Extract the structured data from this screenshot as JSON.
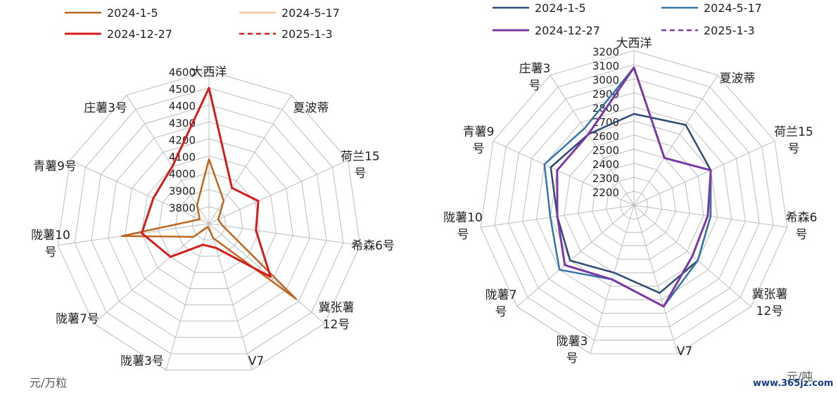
{
  "chart_data": [
    {
      "type": "radar",
      "unit": "元/万粒",
      "categories": [
        "大西洋",
        "夏波蒂",
        "荷兰15号",
        "希森6号",
        "冀张薯12号",
        "V7",
        "陇薯3号",
        "陇薯7号",
        "陇薯10号",
        "青薯9号",
        "庄薯3号"
      ],
      "category_label_lines": [
        [
          "大西洋"
        ],
        [
          "夏波蒂"
        ],
        [
          "荷兰15",
          "号"
        ],
        [
          "希森6号"
        ],
        [
          "冀张薯",
          "12号"
        ],
        [
          "V7"
        ],
        [
          "陇薯3号"
        ],
        [
          "陇薯7号"
        ],
        [
          "陇薯10",
          "号"
        ],
        [
          "青薯9号"
        ],
        [
          "庄薯3号"
        ]
      ],
      "axis_min": 3700,
      "axis_max": 4600,
      "axis_step": 100,
      "tick_labels": [
        "3800",
        "3900",
        "4000",
        "4100",
        "4200",
        "4300",
        "4400",
        "4500",
        "4600"
      ],
      "legend_position": "top",
      "series": [
        {
          "name": "2024-1-5",
          "color": "#c0661f",
          "dash": false,
          "width": 2.5,
          "values": [
            4080,
            3860,
            3760,
            3780,
            4380,
            3790,
            3720,
            3820,
            4220,
            3760,
            3830
          ]
        },
        {
          "name": "2024-5-17",
          "color": "#f0c8a0",
          "dash": false,
          "width": 2.5,
          "values": [
            4500,
            3950,
            4020,
            3980,
            4180,
            3850,
            3830,
            4000,
            4100,
            4060,
            4100
          ]
        },
        {
          "name": "2024-12-27",
          "color": "#d51d1d",
          "dash": false,
          "width": 3,
          "values": [
            4500,
            3950,
            4020,
            3980,
            4180,
            3850,
            3830,
            4000,
            4100,
            4060,
            4100
          ]
        },
        {
          "name": "2025-1-3",
          "color": "#d51d1d",
          "dash": true,
          "width": 2.5,
          "values": [
            4500,
            3950,
            4020,
            3980,
            4180,
            3850,
            3830,
            4000,
            4100,
            4060,
            4100
          ]
        }
      ]
    },
    {
      "type": "radar",
      "unit": "元/吨",
      "categories": [
        "大西洋",
        "夏波蒂",
        "荷兰15号",
        "希森6号",
        "冀张薯12号",
        "V7",
        "陇薯3号",
        "陇薯7号",
        "陇薯10号",
        "青薯9号",
        "庄薯3号"
      ],
      "category_label_lines": [
        [
          "大西洋"
        ],
        [
          "夏波蒂"
        ],
        [
          "荷兰15",
          "号"
        ],
        [
          "希森6",
          "号"
        ],
        [
          "冀张薯",
          "12号"
        ],
        [
          "V7"
        ],
        [
          "陇薯3",
          "号"
        ],
        [
          "陇薯7",
          "号"
        ],
        [
          "陇薯10",
          "号"
        ],
        [
          "青薯9",
          "号"
        ],
        [
          "庄薯3",
          "号"
        ]
      ],
      "axis_min": 2100,
      "axis_max": 3200,
      "axis_step": 100,
      "tick_labels": [
        "2200",
        "2300",
        "2400",
        "2500",
        "2600",
        "2700",
        "2800",
        "2900",
        "3000",
        "3100",
        "3200"
      ],
      "legend_position": "top",
      "series": [
        {
          "name": "2024-1-5",
          "color": "#2e4a75",
          "dash": false,
          "width": 2.5,
          "values": [
            2750,
            2780,
            2700,
            2650,
            2700,
            2750,
            2600,
            2700,
            2650,
            2750,
            2700
          ]
        },
        {
          "name": "2024-5-17",
          "color": "#3575a8",
          "dash": false,
          "width": 2.5,
          "values": [
            3080,
            2500,
            2700,
            2650,
            2700,
            2850,
            2650,
            2800,
            2700,
            2800,
            2750
          ]
        },
        {
          "name": "2024-12-27",
          "color": "#7b3aa3",
          "dash": false,
          "width": 3,
          "values": [
            3080,
            2500,
            2700,
            2630,
            2650,
            2850,
            2650,
            2750,
            2650,
            2700,
            2700
          ]
        },
        {
          "name": "2025-1-3",
          "color": "#7b3aa3",
          "dash": true,
          "width": 2.5,
          "values": [
            3080,
            2500,
            2700,
            2630,
            2650,
            2850,
            2650,
            2750,
            2650,
            2700,
            2700
          ]
        }
      ]
    }
  ],
  "watermark": "www.365jz.com"
}
